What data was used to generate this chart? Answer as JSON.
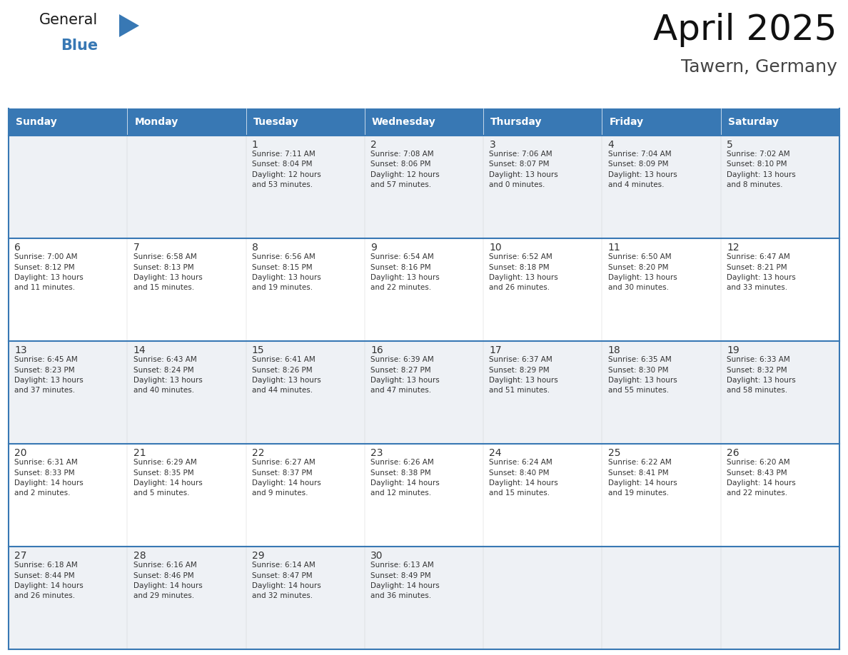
{
  "title": "April 2025",
  "subtitle": "Tawern, Germany",
  "header_bg_color": "#3878b4",
  "header_text_color": "#ffffff",
  "border_color": "#3878b4",
  "text_color": "#333333",
  "cell_bg_light": "#eef1f5",
  "cell_bg_white": "#ffffff",
  "days_of_week": [
    "Sunday",
    "Monday",
    "Tuesday",
    "Wednesday",
    "Thursday",
    "Friday",
    "Saturday"
  ],
  "calendar_data": [
    [
      {
        "day": "",
        "sunrise": "",
        "sunset": "",
        "daylight": ""
      },
      {
        "day": "",
        "sunrise": "",
        "sunset": "",
        "daylight": ""
      },
      {
        "day": "1",
        "sunrise": "7:11 AM",
        "sunset": "8:04 PM",
        "daylight": "12 hours and 53 minutes."
      },
      {
        "day": "2",
        "sunrise": "7:08 AM",
        "sunset": "8:06 PM",
        "daylight": "12 hours and 57 minutes."
      },
      {
        "day": "3",
        "sunrise": "7:06 AM",
        "sunset": "8:07 PM",
        "daylight": "13 hours and 0 minutes."
      },
      {
        "day": "4",
        "sunrise": "7:04 AM",
        "sunset": "8:09 PM",
        "daylight": "13 hours and 4 minutes."
      },
      {
        "day": "5",
        "sunrise": "7:02 AM",
        "sunset": "8:10 PM",
        "daylight": "13 hours and 8 minutes."
      }
    ],
    [
      {
        "day": "6",
        "sunrise": "7:00 AM",
        "sunset": "8:12 PM",
        "daylight": "13 hours and 11 minutes."
      },
      {
        "day": "7",
        "sunrise": "6:58 AM",
        "sunset": "8:13 PM",
        "daylight": "13 hours and 15 minutes."
      },
      {
        "day": "8",
        "sunrise": "6:56 AM",
        "sunset": "8:15 PM",
        "daylight": "13 hours and 19 minutes."
      },
      {
        "day": "9",
        "sunrise": "6:54 AM",
        "sunset": "8:16 PM",
        "daylight": "13 hours and 22 minutes."
      },
      {
        "day": "10",
        "sunrise": "6:52 AM",
        "sunset": "8:18 PM",
        "daylight": "13 hours and 26 minutes."
      },
      {
        "day": "11",
        "sunrise": "6:50 AM",
        "sunset": "8:20 PM",
        "daylight": "13 hours and 30 minutes."
      },
      {
        "day": "12",
        "sunrise": "6:47 AM",
        "sunset": "8:21 PM",
        "daylight": "13 hours and 33 minutes."
      }
    ],
    [
      {
        "day": "13",
        "sunrise": "6:45 AM",
        "sunset": "8:23 PM",
        "daylight": "13 hours and 37 minutes."
      },
      {
        "day": "14",
        "sunrise": "6:43 AM",
        "sunset": "8:24 PM",
        "daylight": "13 hours and 40 minutes."
      },
      {
        "day": "15",
        "sunrise": "6:41 AM",
        "sunset": "8:26 PM",
        "daylight": "13 hours and 44 minutes."
      },
      {
        "day": "16",
        "sunrise": "6:39 AM",
        "sunset": "8:27 PM",
        "daylight": "13 hours and 47 minutes."
      },
      {
        "day": "17",
        "sunrise": "6:37 AM",
        "sunset": "8:29 PM",
        "daylight": "13 hours and 51 minutes."
      },
      {
        "day": "18",
        "sunrise": "6:35 AM",
        "sunset": "8:30 PM",
        "daylight": "13 hours and 55 minutes."
      },
      {
        "day": "19",
        "sunrise": "6:33 AM",
        "sunset": "8:32 PM",
        "daylight": "13 hours and 58 minutes."
      }
    ],
    [
      {
        "day": "20",
        "sunrise": "6:31 AM",
        "sunset": "8:33 PM",
        "daylight": "14 hours and 2 minutes."
      },
      {
        "day": "21",
        "sunrise": "6:29 AM",
        "sunset": "8:35 PM",
        "daylight": "14 hours and 5 minutes."
      },
      {
        "day": "22",
        "sunrise": "6:27 AM",
        "sunset": "8:37 PM",
        "daylight": "14 hours and 9 minutes."
      },
      {
        "day": "23",
        "sunrise": "6:26 AM",
        "sunset": "8:38 PM",
        "daylight": "14 hours and 12 minutes."
      },
      {
        "day": "24",
        "sunrise": "6:24 AM",
        "sunset": "8:40 PM",
        "daylight": "14 hours and 15 minutes."
      },
      {
        "day": "25",
        "sunrise": "6:22 AM",
        "sunset": "8:41 PM",
        "daylight": "14 hours and 19 minutes."
      },
      {
        "day": "26",
        "sunrise": "6:20 AM",
        "sunset": "8:43 PM",
        "daylight": "14 hours and 22 minutes."
      }
    ],
    [
      {
        "day": "27",
        "sunrise": "6:18 AM",
        "sunset": "8:44 PM",
        "daylight": "14 hours and 26 minutes."
      },
      {
        "day": "28",
        "sunrise": "6:16 AM",
        "sunset": "8:46 PM",
        "daylight": "14 hours and 29 minutes."
      },
      {
        "day": "29",
        "sunrise": "6:14 AM",
        "sunset": "8:47 PM",
        "daylight": "14 hours and 32 minutes."
      },
      {
        "day": "30",
        "sunrise": "6:13 AM",
        "sunset": "8:49 PM",
        "daylight": "14 hours and 36 minutes."
      },
      {
        "day": "",
        "sunrise": "",
        "sunset": "",
        "daylight": ""
      },
      {
        "day": "",
        "sunrise": "",
        "sunset": "",
        "daylight": ""
      },
      {
        "day": "",
        "sunrise": "",
        "sunset": "",
        "daylight": ""
      }
    ]
  ],
  "logo_text_general": "General",
  "logo_text_blue": "Blue",
  "logo_color_general": "#1a1a1a",
  "logo_color_blue": "#3878b4",
  "logo_triangle_color": "#3878b4",
  "title_fontsize": 36,
  "subtitle_fontsize": 18,
  "header_fontsize": 10,
  "day_number_fontsize": 10,
  "cell_text_fontsize": 7.5
}
